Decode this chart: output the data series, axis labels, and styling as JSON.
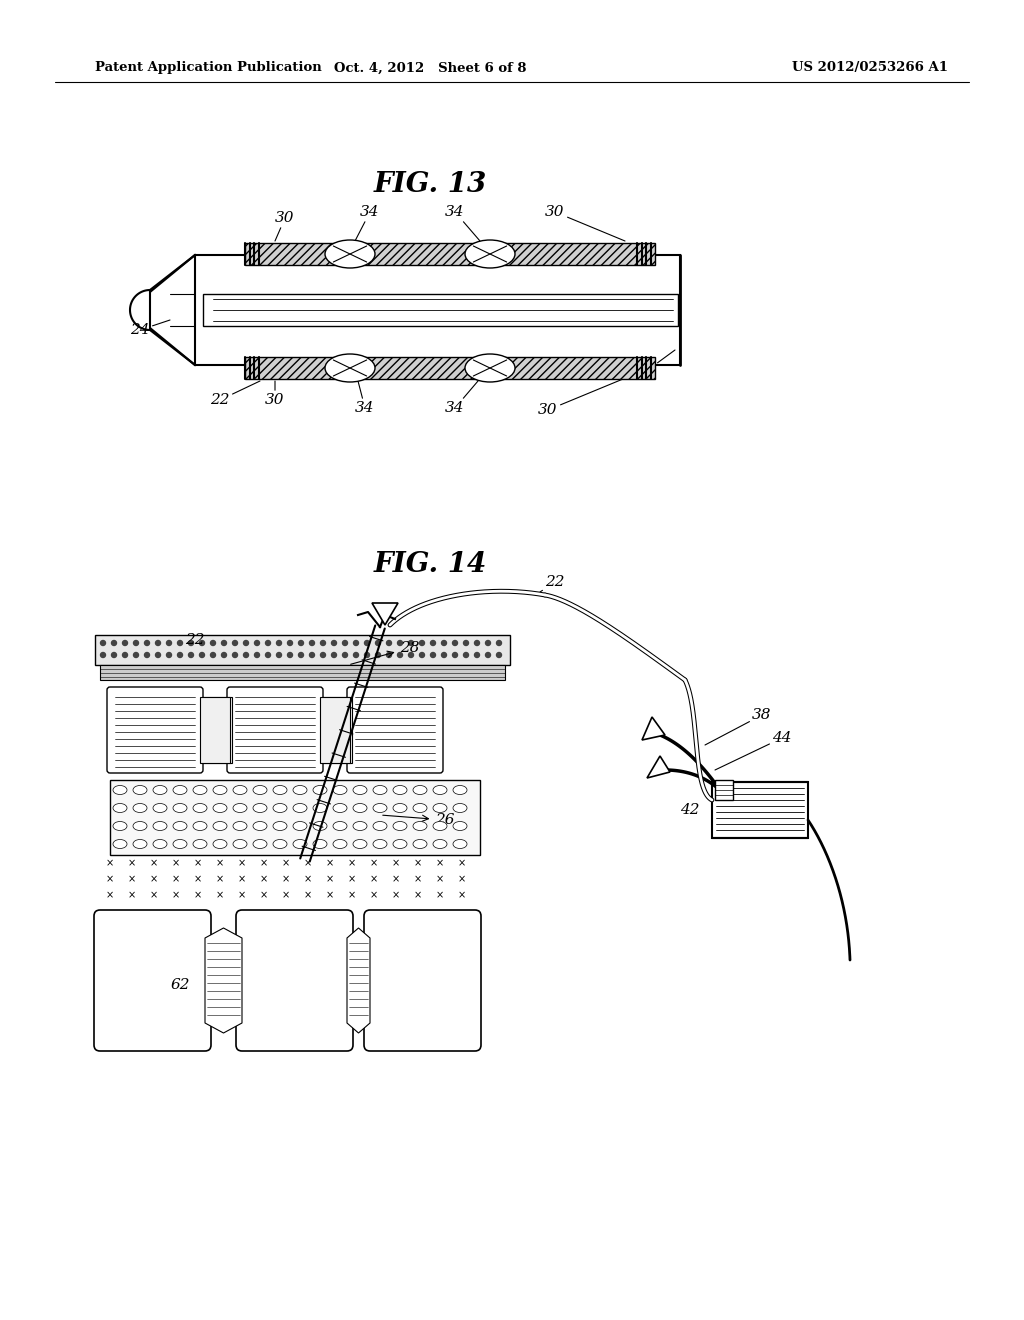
{
  "bg_color": "#ffffff",
  "header_left": "Patent Application Publication",
  "header_mid": "Oct. 4, 2012   Sheet 6 of 8",
  "header_right": "US 2012/0253266 A1",
  "fig13_title": "FIG. 13",
  "fig14_title": "FIG. 14",
  "page_width": 10.24,
  "page_height": 13.2,
  "dpi": 100
}
